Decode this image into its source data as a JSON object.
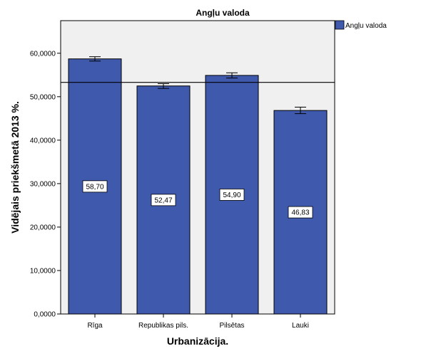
{
  "chart_data": {
    "type": "bar",
    "title": "Angļu valoda",
    "xlabel": "Urbanizācija.",
    "ylabel": "Vidējais priekšmetā 2013 %.",
    "categories": [
      "Rīga",
      "Republikas pils.",
      "Pilsētas",
      "Lauki"
    ],
    "series": [
      {
        "name": "Angļu valoda",
        "values": [
          58.7,
          52.47,
          54.9,
          46.83
        ],
        "value_labels": [
          "58,70",
          "52,47",
          "54,90",
          "46,83"
        ],
        "error_low": [
          58.2,
          51.9,
          54.3,
          46.1
        ],
        "error_high": [
          59.2,
          53.0,
          55.5,
          47.6
        ]
      }
    ],
    "reference_line": 53.3,
    "ylim": [
      0,
      67.5
    ],
    "yticks": [
      0,
      10,
      20,
      30,
      40,
      50,
      60
    ],
    "ytick_labels": [
      "0,0000",
      "10,0000",
      "20,0000",
      "30,0000",
      "40,0000",
      "50,0000",
      "60,0000"
    ],
    "legend_position": "top-right",
    "grid": false,
    "colors": {
      "bar": "#3f59ad",
      "plot_background": "#f0f0f0",
      "error_bar": "#000000"
    }
  }
}
